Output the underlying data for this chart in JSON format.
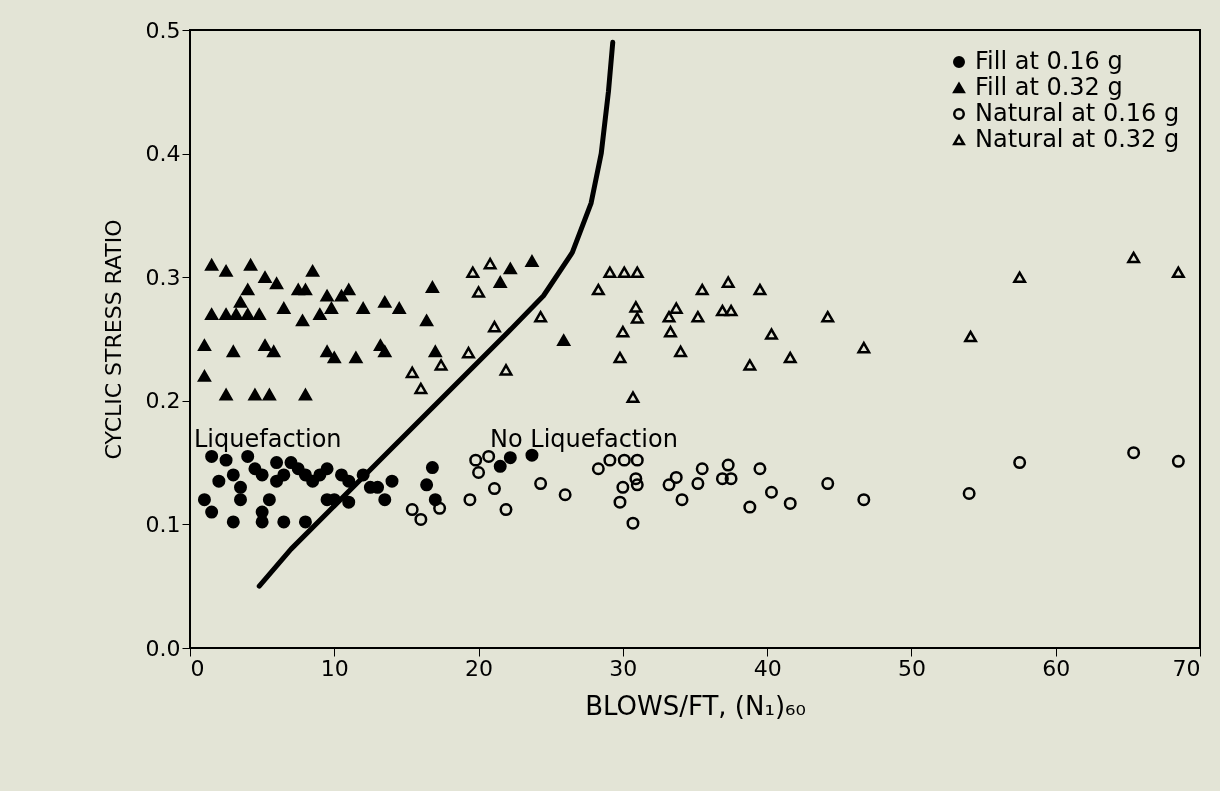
{
  "chart_data": {
    "type": "scatter",
    "xlabel": "BLOWS/FT, (N₁)₆₀",
    "ylabel": "CYCLIC STRESS RATIO",
    "xlim": [
      0,
      70
    ],
    "ylim": [
      0,
      0.5
    ],
    "xticks": [
      0,
      10,
      20,
      30,
      40,
      50,
      60,
      70
    ],
    "yticks": [
      {
        "value": 0,
        "label": "0.0"
      },
      {
        "value": 0.1,
        "label": "0.1"
      },
      {
        "value": 0.2,
        "label": "0.2"
      },
      {
        "value": 0.3,
        "label": "0.3"
      },
      {
        "value": 0.4,
        "label": "0.4"
      },
      {
        "value": 0.5,
        "label": "0.5"
      }
    ],
    "grid": false,
    "legend": "top right",
    "annotations": [
      "Liquefaction",
      "No Liquefaction"
    ],
    "series": [
      {
        "name": "Fill at 0.16 g",
        "color": "#000000",
        "marker": "circle",
        "x": [
          1.5,
          2.5,
          1,
          1.5,
          3,
          3.5,
          5,
          5,
          5.5,
          6.5,
          8,
          9.5,
          10,
          11,
          13.5,
          2,
          3,
          4,
          4.5,
          5,
          6,
          6.5,
          7.5,
          8,
          8.5,
          9.5,
          10.5,
          11,
          12,
          12.5,
          13,
          14,
          3.5,
          6,
          7,
          9,
          16.8,
          16.4,
          17.0,
          21.5,
          22.2,
          23.7
        ],
        "values": [
          0.155,
          0.152,
          0.12,
          0.11,
          0.102,
          0.12,
          0.102,
          0.11,
          0.12,
          0.102,
          0.102,
          0.12,
          0.12,
          0.118,
          0.12,
          0.135,
          0.14,
          0.155,
          0.145,
          0.14,
          0.15,
          0.14,
          0.145,
          0.14,
          0.135,
          0.145,
          0.14,
          0.135,
          0.14,
          0.13,
          0.13,
          0.135,
          0.13,
          0.135,
          0.15,
          0.14,
          0.146,
          0.132,
          0.12,
          0.147,
          0.154,
          0.156
        ]
      },
      {
        "name": "Fill at 0.32 g",
        "color": "#000000",
        "marker": "triangle",
        "x": [
          1.5,
          2.5,
          4.2,
          5.2,
          6,
          4,
          3.5,
          7.5,
          8.5,
          8,
          9.5,
          11,
          10.5,
          12,
          13.5,
          14.5,
          1.5,
          2.5,
          3.2,
          4,
          4.8,
          6.5,
          7.8,
          9,
          9.8,
          1,
          3,
          5.2,
          5.8,
          9.5,
          10,
          11.5,
          13.2,
          13.5,
          1,
          2.5,
          4.5,
          5.5,
          8,
          16.8,
          16.4,
          17.0,
          22.2,
          21.5,
          23.7,
          25.9
        ],
        "values": [
          0.31,
          0.305,
          0.31,
          0.3,
          0.295,
          0.29,
          0.28,
          0.29,
          0.305,
          0.29,
          0.285,
          0.29,
          0.285,
          0.275,
          0.28,
          0.275,
          0.27,
          0.27,
          0.27,
          0.27,
          0.27,
          0.275,
          0.265,
          0.27,
          0.275,
          0.245,
          0.24,
          0.245,
          0.24,
          0.24,
          0.235,
          0.235,
          0.245,
          0.24,
          0.22,
          0.205,
          0.205,
          0.205,
          0.205,
          0.292,
          0.265,
          0.24,
          0.307,
          0.296,
          0.313,
          0.249
        ]
      },
      {
        "name": "Natural at 0.16 g",
        "color": "#000000",
        "marker": "circle",
        "x": [
          44.2,
          46.7,
          54.0,
          57.5,
          65.4,
          68.5,
          19.8,
          20.7,
          20.0,
          21.1,
          19.4,
          21.9,
          24.3,
          26.0,
          15.4,
          16.0,
          17.3,
          28.3,
          29.1,
          30.1,
          31.0,
          30.9,
          31.0,
          30.0,
          29.8,
          30.7,
          33.2,
          33.7,
          34.1,
          35.2,
          35.5,
          37.3,
          36.9,
          37.5,
          39.5,
          40.3,
          38.8,
          41.6
        ],
        "values": [
          0.133,
          0.12,
          0.125,
          0.15,
          0.158,
          0.151,
          0.152,
          0.155,
          0.142,
          0.129,
          0.12,
          0.112,
          0.133,
          0.124,
          0.112,
          0.104,
          0.113,
          0.145,
          0.152,
          0.152,
          0.152,
          0.137,
          0.132,
          0.13,
          0.118,
          0.101,
          0.132,
          0.138,
          0.12,
          0.133,
          0.145,
          0.148,
          0.137,
          0.137,
          0.145,
          0.126,
          0.114,
          0.117
        ]
      },
      {
        "name": "Natural at 0.32 g",
        "color": "#000000",
        "marker": "triangle",
        "x": [
          19.6,
          20.8,
          20.0,
          21.1,
          19.3,
          17.4,
          15.4,
          16.0,
          21.9,
          24.3,
          29.1,
          30.1,
          31.0,
          28.3,
          30.9,
          31.0,
          30.0,
          29.8,
          30.7,
          33.7,
          33.2,
          33.3,
          34.0,
          35.2,
          35.5,
          37.3,
          36.9,
          37.5,
          39.5,
          40.3,
          38.8,
          41.6,
          44.2,
          46.7,
          54.1,
          57.5,
          65.4,
          68.5
        ],
        "values": [
          0.304,
          0.311,
          0.288,
          0.26,
          0.239,
          0.229,
          0.223,
          0.21,
          0.225,
          0.268,
          0.304,
          0.304,
          0.304,
          0.29,
          0.276,
          0.267,
          0.256,
          0.235,
          0.203,
          0.275,
          0.268,
          0.256,
          0.24,
          0.268,
          0.29,
          0.296,
          0.273,
          0.273,
          0.29,
          0.254,
          0.229,
          0.235,
          0.268,
          0.243,
          0.252,
          0.3,
          0.316,
          0.304
        ]
      },
      {
        "type": "line",
        "color": "#000000",
        "line_style": "solid",
        "x": [
          4.8,
          7,
          10,
          13,
          16,
          19,
          22,
          24.5,
          26.5,
          27.8,
          28.5,
          29,
          29.3
        ],
        "values": [
          0.05,
          0.08,
          0.115,
          0.15,
          0.185,
          0.22,
          0.255,
          0.285,
          0.32,
          0.36,
          0.4,
          0.45,
          0.49
        ]
      }
    ]
  }
}
